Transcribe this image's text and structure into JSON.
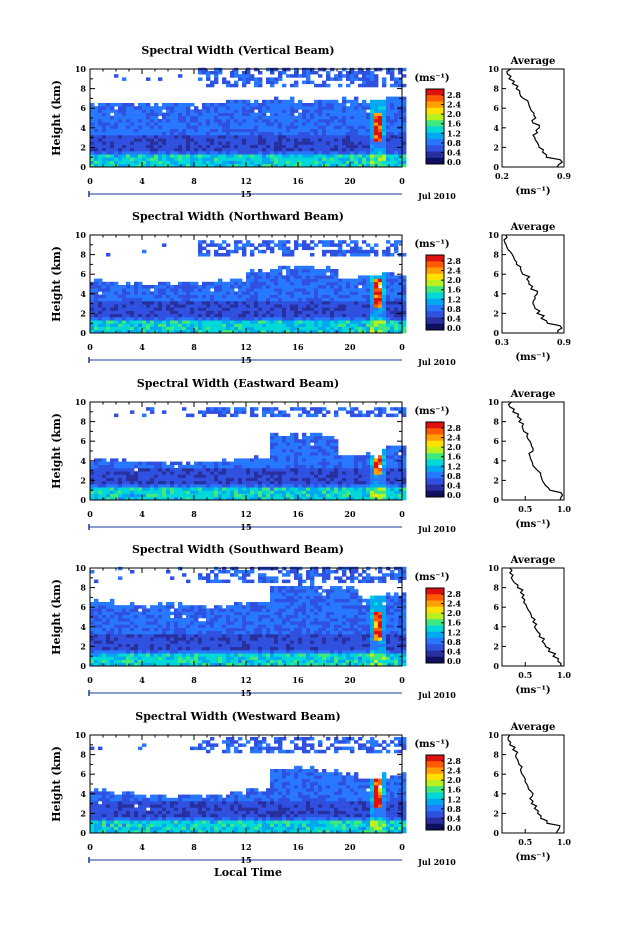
{
  "figure": {
    "x_axis_label": "Local Time",
    "colorbar_unit_label": "(ms⁻¹)",
    "colorbar_ticks": [
      "2.8",
      "2.4",
      "2.0",
      "1.6",
      "1.2",
      "0.8",
      "0.4",
      "0.0"
    ],
    "colorbar_colors": [
      "#e01010",
      "#ff5a00",
      "#ffa000",
      "#ffe000",
      "#b8f020",
      "#40e880",
      "#00d8d8",
      "#00a8f0",
      "#2878ff",
      "#3050e0",
      "#2830a0",
      "#101060"
    ],
    "time_ticks": [
      "0",
      "4",
      "8",
      "12",
      "16",
      "20",
      "0"
    ],
    "day_label": "15",
    "month_label": "Jul 2010",
    "height_ticks": [
      "0",
      "2",
      "4",
      "6",
      "8",
      "10"
    ],
    "height_axis_label": "Height (km)",
    "average_title": "Average",
    "average_unit_label": "(ms⁻¹)"
  },
  "chart_data": [
    {
      "type": "heatmap",
      "title": "Spectral Width (Vertical Beam)",
      "xlabel": "Local Time",
      "ylabel": "Height (km)",
      "xlim": [
        0,
        24
      ],
      "ylim": [
        0,
        10
      ],
      "cloud_top_km": [
        6.4,
        6.3,
        6.3,
        6.3,
        6.4,
        6.3,
        6.5,
        6.6,
        6.7,
        6.6,
        6.7,
        6.7,
        6.7,
        6.8
      ],
      "upper_layer_km": [
        8.0,
        10.0
      ],
      "avg_profile": {
        "title": "Average",
        "xlabel": "(ms⁻¹)",
        "xlim": [
          0.2,
          0.9
        ],
        "xticks": [
          "0.2",
          "0.9"
        ],
        "heights": [
          0,
          0.5,
          1,
          1.5,
          2,
          2.5,
          3,
          3.5,
          4,
          4.5,
          5,
          5.5,
          6,
          6.5,
          7,
          7.5,
          8,
          8.5,
          9,
          9.5,
          10
        ],
        "values": [
          0.82,
          0.88,
          0.7,
          0.66,
          0.62,
          0.6,
          0.57,
          0.6,
          0.62,
          0.55,
          0.58,
          0.56,
          0.52,
          0.5,
          0.44,
          0.4,
          0.36,
          0.32,
          0.28,
          0.26,
          0.3
        ]
      }
    },
    {
      "type": "heatmap",
      "title": "Spectral Width (Northward Beam)",
      "xlabel": "Local Time",
      "ylabel": "Height (km)",
      "xlim": [
        0,
        24
      ],
      "ylim": [
        0,
        10
      ],
      "cloud_top_km": [
        5.2,
        5.0,
        4.8,
        5.0,
        4.9,
        5.1,
        5.3,
        6.2,
        6.5,
        6.6,
        6.4,
        5.5,
        5.7,
        6.0
      ],
      "upper_layer_km": [
        7.8,
        9.4
      ],
      "avg_profile": {
        "title": "Average",
        "xlabel": "(ms⁻¹)",
        "xlim": [
          0.3,
          0.9
        ],
        "xticks": [
          "0.3",
          "0.9"
        ],
        "heights": [
          0,
          0.5,
          1,
          1.5,
          2,
          2.5,
          3,
          3.5,
          4,
          4.5,
          5,
          5.5,
          6,
          6.5,
          7,
          7.5,
          8,
          8.5,
          9,
          9.5,
          10
        ],
        "values": [
          0.84,
          0.88,
          0.74,
          0.68,
          0.64,
          0.62,
          0.6,
          0.62,
          0.64,
          0.58,
          0.56,
          0.54,
          0.5,
          0.48,
          0.44,
          0.42,
          0.4,
          0.36,
          0.34,
          0.32,
          0.34
        ]
      }
    },
    {
      "type": "heatmap",
      "title": "Spectral Width (Eastward Beam)",
      "xlabel": "Local Time",
      "ylabel": "Height (km)",
      "xlim": [
        0,
        24
      ],
      "ylim": [
        0,
        10
      ],
      "cloud_top_km": [
        4.0,
        3.8,
        3.6,
        3.7,
        3.6,
        3.8,
        4.0,
        4.2,
        6.6,
        6.5,
        6.4,
        4.4,
        4.6,
        5.4
      ],
      "upper_layer_km": [
        8.2,
        9.2
      ],
      "avg_profile": {
        "title": "Average",
        "xlabel": "(ms⁻¹)",
        "xlim": [
          0.2,
          1.0
        ],
        "xticks": [
          "0.5",
          "1.0"
        ],
        "heights": [
          0,
          0.5,
          1,
          1.5,
          2,
          2.5,
          3,
          3.5,
          4,
          4.5,
          5,
          5.5,
          6,
          6.5,
          7,
          7.5,
          8,
          8.5,
          9,
          9.5,
          10
        ],
        "values": [
          0.95,
          0.98,
          0.82,
          0.76,
          0.72,
          0.7,
          0.66,
          0.6,
          0.58,
          0.56,
          0.6,
          0.58,
          0.56,
          0.52,
          0.48,
          0.46,
          0.42,
          0.4,
          0.34,
          0.3,
          0.32
        ]
      }
    },
    {
      "type": "heatmap",
      "title": "Spectral Width (Southward Beam)",
      "xlabel": "Local Time",
      "ylabel": "Height (km)",
      "xlim": [
        0,
        24
      ],
      "ylim": [
        0,
        10
      ],
      "cloud_top_km": [
        6.6,
        6.2,
        6.0,
        6.2,
        6.1,
        6.0,
        6.2,
        6.4,
        8.0,
        8.1,
        8.0,
        7.8,
        7.0,
        7.2
      ],
      "upper_layer_km": [
        8.2,
        10.0
      ],
      "avg_profile": {
        "title": "Average",
        "xlabel": "(ms⁻¹)",
        "xlim": [
          0.2,
          1.0
        ],
        "xticks": [
          "0.5",
          "1.0"
        ],
        "heights": [
          0,
          0.5,
          1,
          1.5,
          2,
          2.5,
          3,
          3.5,
          4,
          4.5,
          5,
          5.5,
          6,
          6.5,
          7,
          7.5,
          8,
          8.5,
          9,
          9.5,
          10
        ],
        "values": [
          0.96,
          0.92,
          0.86,
          0.8,
          0.76,
          0.72,
          0.68,
          0.66,
          0.62,
          0.6,
          0.58,
          0.56,
          0.52,
          0.48,
          0.46,
          0.44,
          0.4,
          0.36,
          0.32,
          0.3,
          0.3
        ]
      }
    },
    {
      "type": "heatmap",
      "title": "Spectral Width (Westward Beam)",
      "xlabel": "Local Time",
      "ylabel": "Height (km)",
      "xlim": [
        0,
        24
      ],
      "ylim": [
        0,
        10
      ],
      "cloud_top_km": [
        4.2,
        3.9,
        3.7,
        3.6,
        3.8,
        3.7,
        4.0,
        4.4,
        6.4,
        6.6,
        6.2,
        5.8,
        5.4,
        5.8
      ],
      "upper_layer_km": [
        8.0,
        9.6
      ],
      "avg_profile": {
        "title": "Average",
        "xlabel": "(ms⁻¹)",
        "xlim": [
          0.2,
          1.0
        ],
        "xticks": [
          "0.5",
          "1.0"
        ],
        "heights": [
          0,
          0.5,
          1,
          1.5,
          2,
          2.5,
          3,
          3.5,
          4,
          4.5,
          5,
          5.5,
          6,
          6.5,
          7,
          7.5,
          8,
          8.5,
          9,
          9.5,
          10
        ],
        "values": [
          0.9,
          0.94,
          0.78,
          0.7,
          0.66,
          0.62,
          0.58,
          0.56,
          0.6,
          0.54,
          0.52,
          0.5,
          0.46,
          0.44,
          0.42,
          0.4,
          0.38,
          0.34,
          0.3,
          0.28,
          0.3
        ]
      }
    }
  ]
}
